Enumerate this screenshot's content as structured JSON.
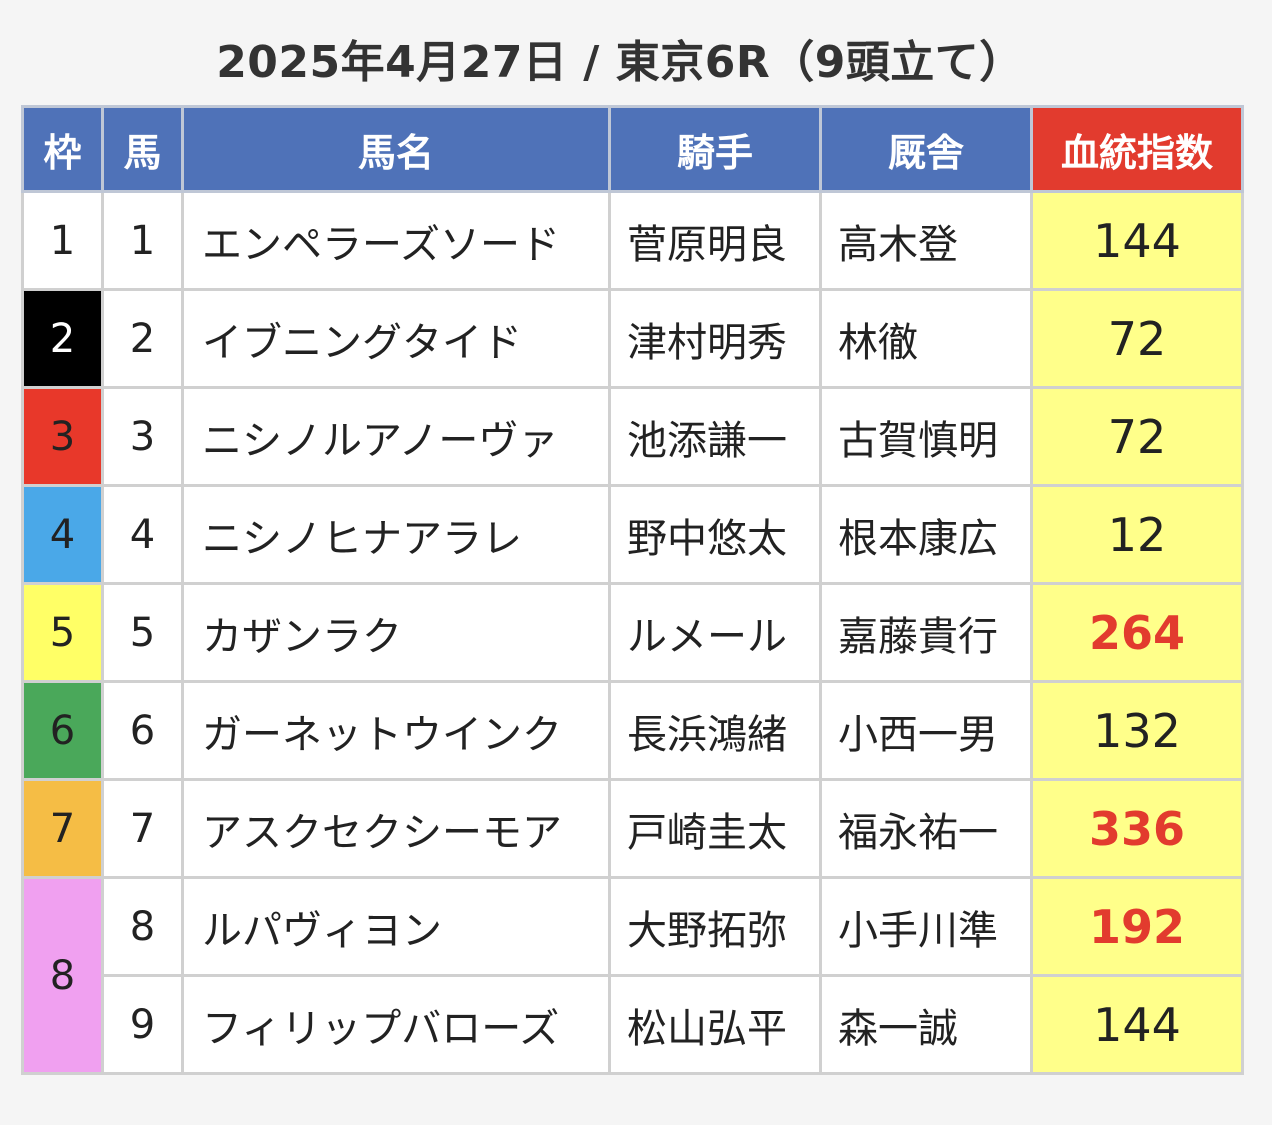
{
  "title": "2025年4月27日 / 東京6R（9頭立て）",
  "headers": {
    "waku": "枠",
    "uma": "馬",
    "name": "馬名",
    "jockey": "騎手",
    "trainer": "厩舎",
    "index": "血統指数"
  },
  "rows": [
    {
      "waku": "1",
      "uma": "1",
      "name": "エンペラーズソード",
      "jockey": "菅原明良",
      "trainer": "高木登",
      "index": "144",
      "highlight": false
    },
    {
      "waku": "2",
      "uma": "2",
      "name": "イブニングタイド",
      "jockey": "津村明秀",
      "trainer": "林徹",
      "index": "72",
      "highlight": false
    },
    {
      "waku": "3",
      "uma": "3",
      "name": "ニシノルアノーヴァ",
      "jockey": "池添謙一",
      "trainer": "古賀慎明",
      "index": "72",
      "highlight": false
    },
    {
      "waku": "4",
      "uma": "4",
      "name": "ニシノヒナアラレ",
      "jockey": "野中悠太",
      "trainer": "根本康広",
      "index": "12",
      "highlight": false
    },
    {
      "waku": "5",
      "uma": "5",
      "name": "カザンラク",
      "jockey": "ルメール",
      "trainer": "嘉藤貴行",
      "index": "264",
      "highlight": true
    },
    {
      "waku": "6",
      "uma": "6",
      "name": "ガーネットウインク",
      "jockey": "長浜鴻緒",
      "trainer": "小西一男",
      "index": "132",
      "highlight": false
    },
    {
      "waku": "7",
      "uma": "7",
      "name": "アスクセクシーモア",
      "jockey": "戸崎圭太",
      "trainer": "福永祐一",
      "index": "336",
      "highlight": true
    },
    {
      "waku": "8",
      "uma": "8",
      "name": "ルパヴィヨン",
      "jockey": "大野拓弥",
      "trainer": "小手川準",
      "index": "192",
      "highlight": true
    },
    {
      "waku": "",
      "uma": "9",
      "name": "フィリップバローズ",
      "jockey": "松山弘平",
      "trainer": "森一誠",
      "index": "144",
      "highlight": false
    }
  ],
  "colors": {
    "header_bg": "#4f72b8",
    "index_header_bg": "#e23b2e",
    "index_cell_bg": "#ffff8a",
    "highlight_text": "#e23b2e"
  }
}
